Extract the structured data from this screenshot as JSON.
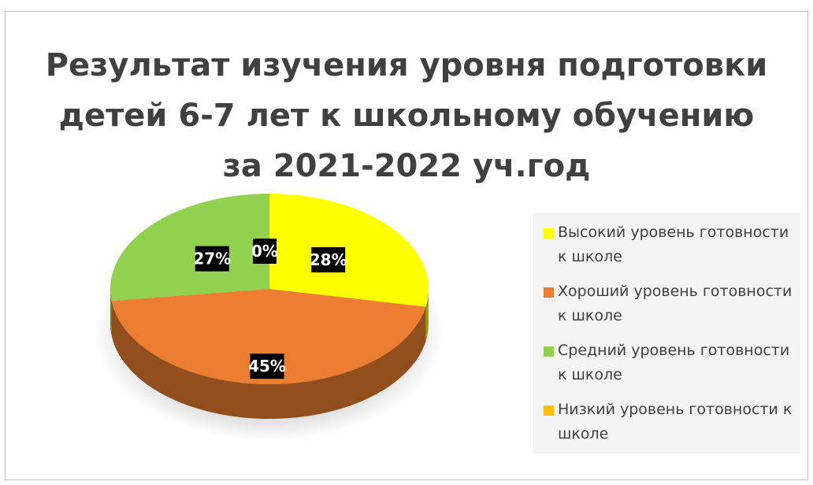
{
  "chart_data": {
    "type": "pie",
    "title": [
      "Результат изучения уровня подготовки",
      "детей 6-7 лет к школьному обучению",
      "за 2021-2022 уч.год"
    ],
    "categories": [
      "Высокий уровень готовности к школе",
      "Хороший уровень готовности к школе",
      "Средний уровень готовности к школе",
      "Низкий уровень готовности к школе"
    ],
    "values": [
      28,
      45,
      27,
      0
    ],
    "data_labels": [
      "28%",
      "45%",
      "27%",
      "0%"
    ],
    "colors": [
      "#ffff00",
      "#ed7d31",
      "#92d050",
      "#ffc000"
    ],
    "legend_position": "right",
    "style": "3d-pie"
  }
}
